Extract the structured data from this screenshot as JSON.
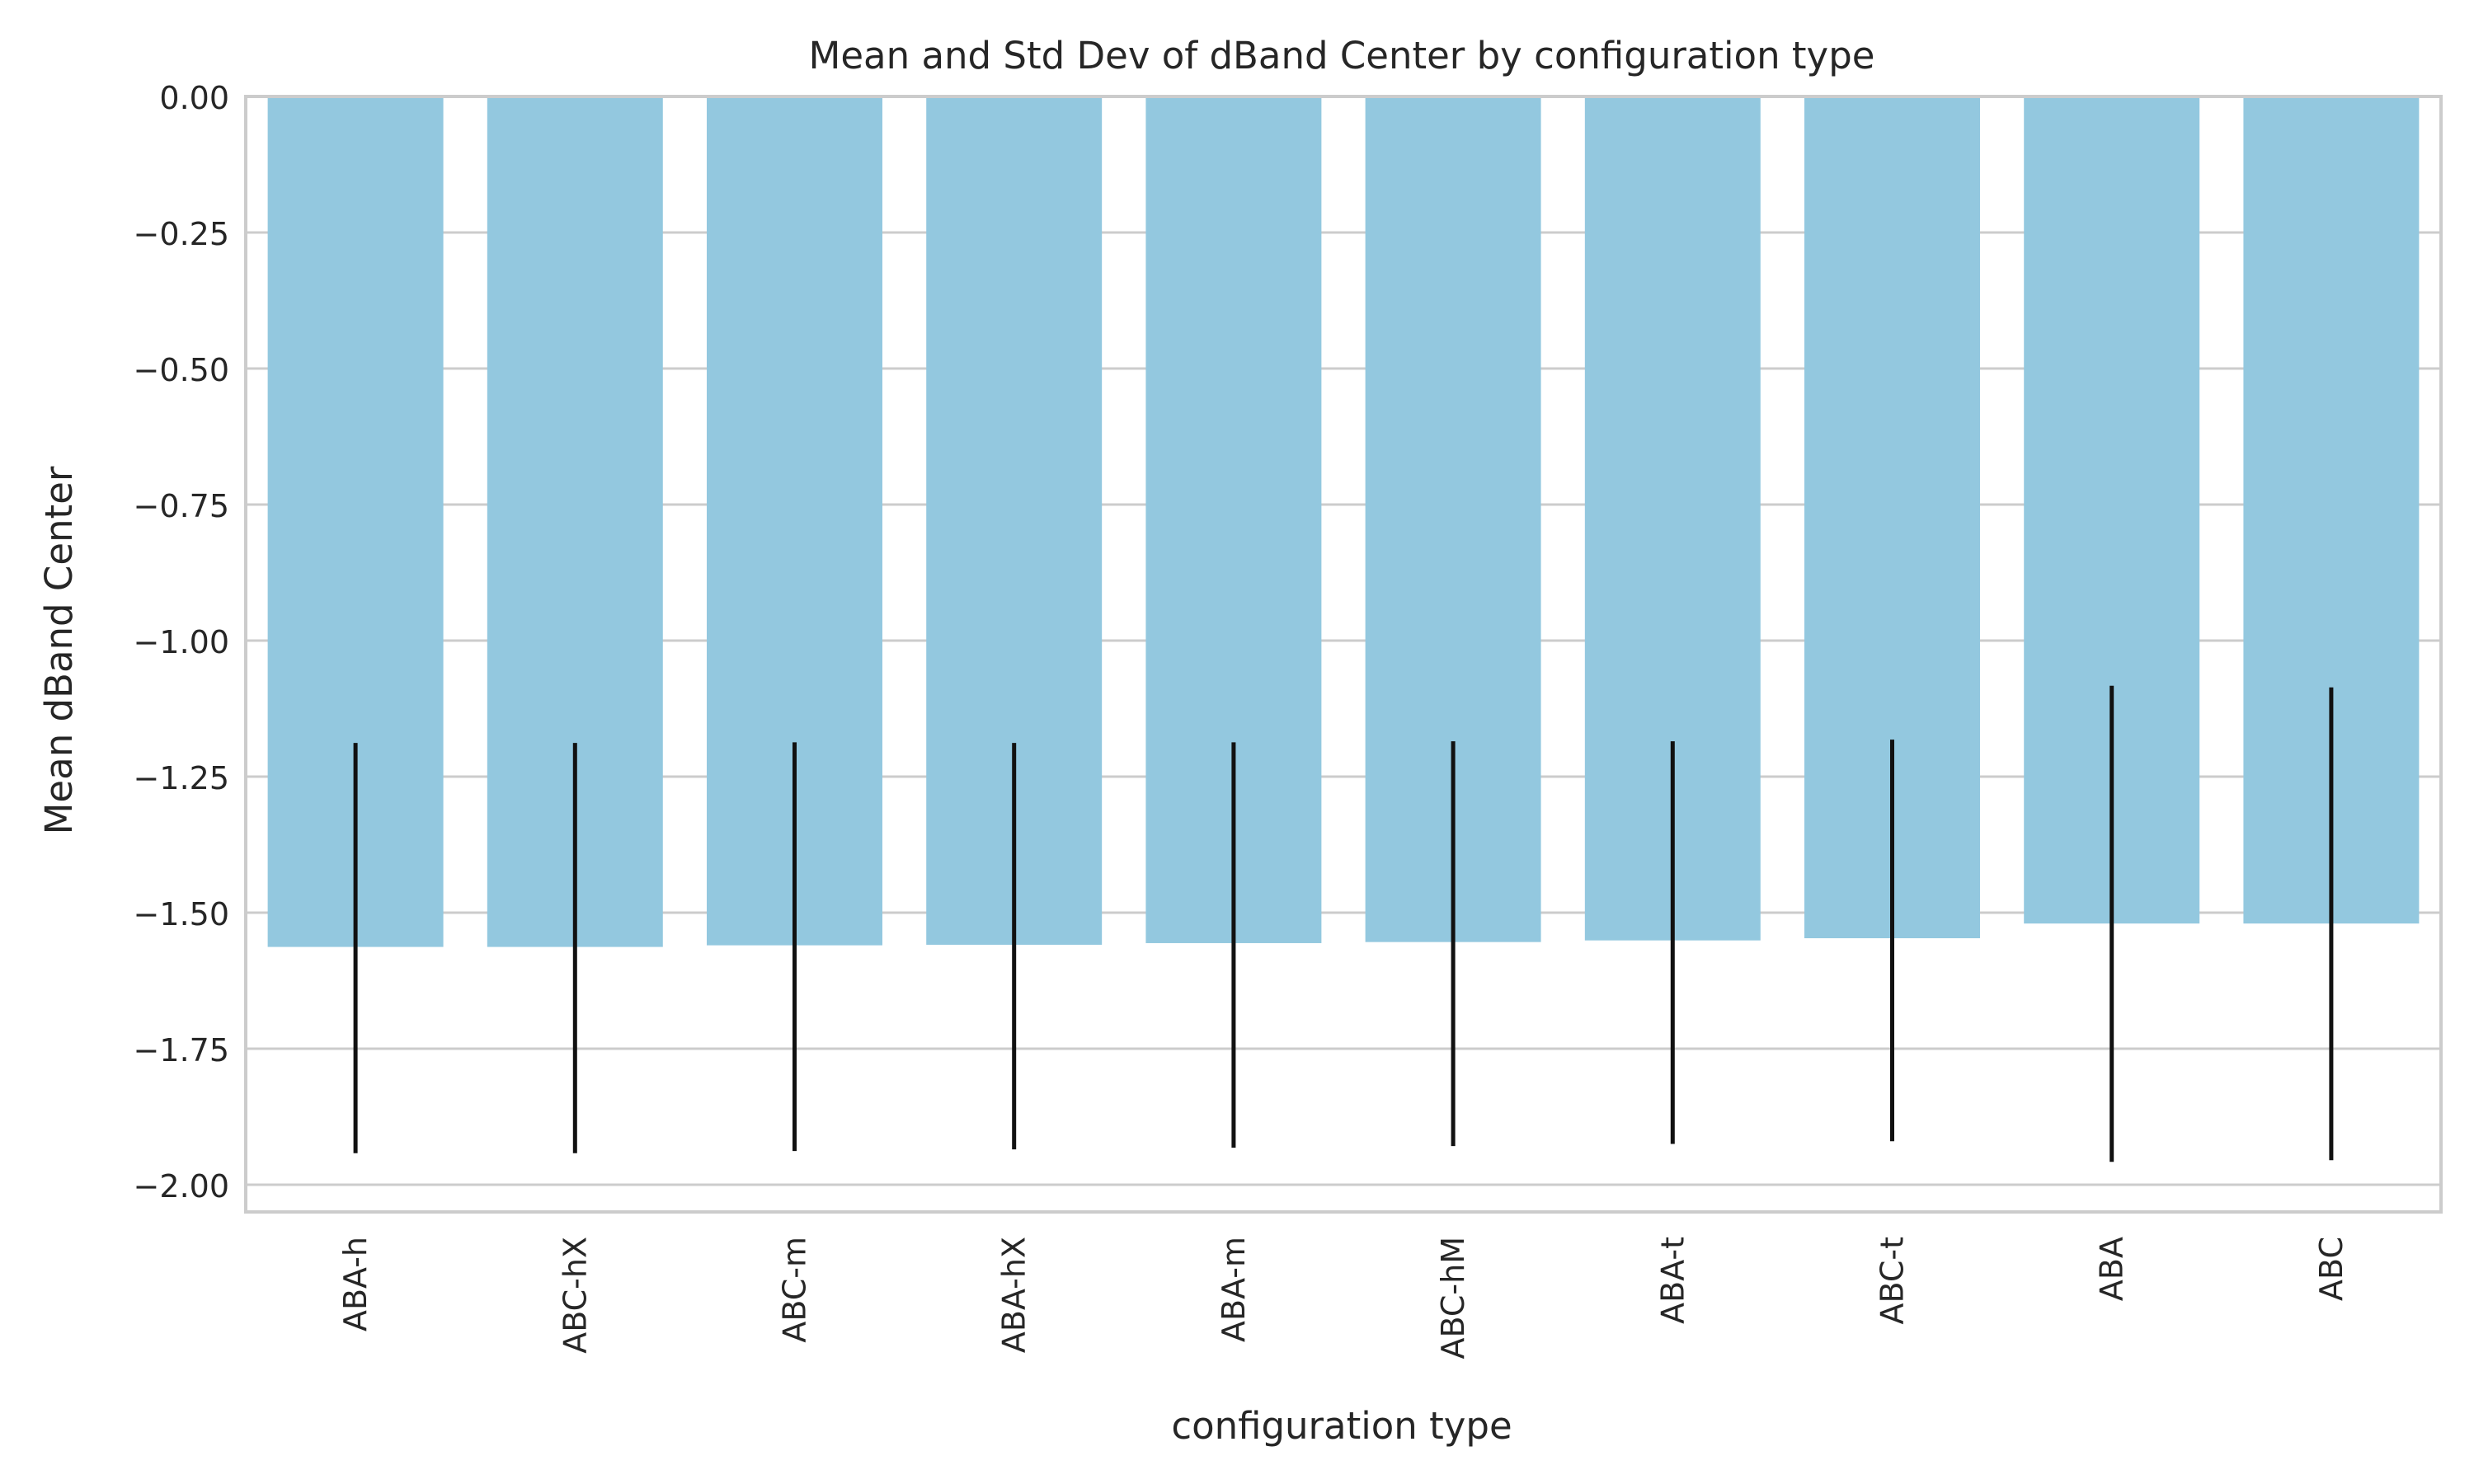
{
  "chart_data": {
    "type": "bar",
    "title": "Mean and Std Dev of dBand Center by configuration type",
    "xlabel": "configuration type",
    "ylabel": "Mean dBand Center",
    "ylim": [
      -2.05,
      0.0
    ],
    "yticks": [
      0.0,
      -0.25,
      -0.5,
      -0.75,
      -1.0,
      -1.25,
      -1.5,
      -1.75,
      -2.0
    ],
    "ytick_labels": [
      "0.00",
      "−0.25",
      "−0.50",
      "−0.75",
      "−1.00",
      "−1.25",
      "−1.50",
      "−1.75",
      "−2.00"
    ],
    "grid": "horizontal",
    "categories": [
      "ABA-h",
      "ABC-hX",
      "ABC-m",
      "ABA-hX",
      "ABA-m",
      "ABC-hM",
      "ABA-t",
      "ABC-t",
      "ABA",
      "ABC"
    ],
    "values": [
      -1.563,
      -1.563,
      -1.56,
      -1.559,
      -1.556,
      -1.554,
      -1.551,
      -1.547,
      -1.52,
      -1.52
    ],
    "error_low": [
      -1.942,
      -1.942,
      -1.938,
      -1.935,
      -1.932,
      -1.929,
      -1.925,
      -1.92,
      -1.958,
      -1.955
    ],
    "error_high": [
      -1.188,
      -1.188,
      -1.187,
      -1.188,
      -1.187,
      -1.185,
      -1.185,
      -1.182,
      -1.083,
      -1.086
    ],
    "colors": {
      "bar": "#93c8df",
      "error": "#111111",
      "grid": "#cccccc",
      "spine": "#cccccc"
    }
  }
}
